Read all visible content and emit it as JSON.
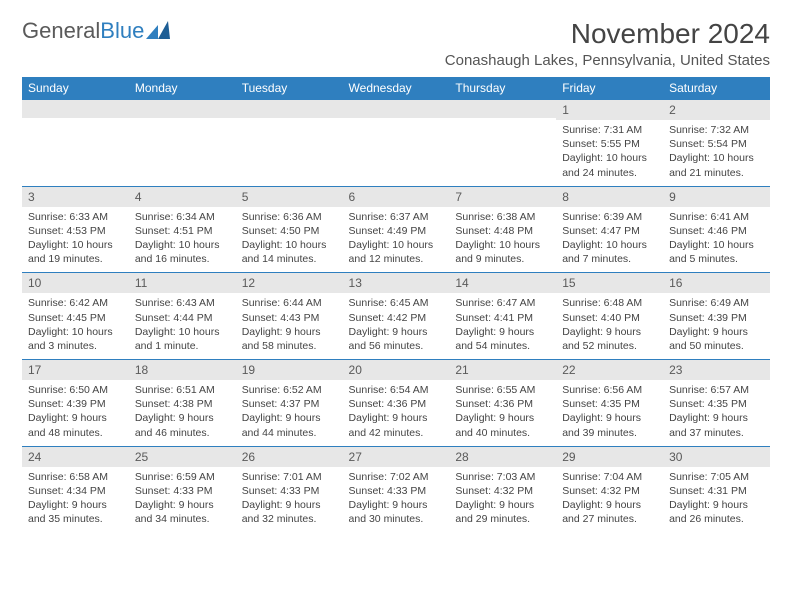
{
  "logo": {
    "text_gray": "General",
    "text_blue": "Blue"
  },
  "header": {
    "month_year": "November 2024",
    "location": "Conashaugh Lakes, Pennsylvania, United States"
  },
  "colors": {
    "header_bg": "#2f7fbf",
    "header_fg": "#ffffff",
    "daynum_bg": "#e7e7e7",
    "border": "#2f7fbf"
  },
  "days_of_week": [
    "Sunday",
    "Monday",
    "Tuesday",
    "Wednesday",
    "Thursday",
    "Friday",
    "Saturday"
  ],
  "weeks": [
    [
      {
        "n": "",
        "sr": "",
        "ss": "",
        "dl": ""
      },
      {
        "n": "",
        "sr": "",
        "ss": "",
        "dl": ""
      },
      {
        "n": "",
        "sr": "",
        "ss": "",
        "dl": ""
      },
      {
        "n": "",
        "sr": "",
        "ss": "",
        "dl": ""
      },
      {
        "n": "",
        "sr": "",
        "ss": "",
        "dl": ""
      },
      {
        "n": "1",
        "sr": "Sunrise: 7:31 AM",
        "ss": "Sunset: 5:55 PM",
        "dl": "Daylight: 10 hours and 24 minutes."
      },
      {
        "n": "2",
        "sr": "Sunrise: 7:32 AM",
        "ss": "Sunset: 5:54 PM",
        "dl": "Daylight: 10 hours and 21 minutes."
      }
    ],
    [
      {
        "n": "3",
        "sr": "Sunrise: 6:33 AM",
        "ss": "Sunset: 4:53 PM",
        "dl": "Daylight: 10 hours and 19 minutes."
      },
      {
        "n": "4",
        "sr": "Sunrise: 6:34 AM",
        "ss": "Sunset: 4:51 PM",
        "dl": "Daylight: 10 hours and 16 minutes."
      },
      {
        "n": "5",
        "sr": "Sunrise: 6:36 AM",
        "ss": "Sunset: 4:50 PM",
        "dl": "Daylight: 10 hours and 14 minutes."
      },
      {
        "n": "6",
        "sr": "Sunrise: 6:37 AM",
        "ss": "Sunset: 4:49 PM",
        "dl": "Daylight: 10 hours and 12 minutes."
      },
      {
        "n": "7",
        "sr": "Sunrise: 6:38 AM",
        "ss": "Sunset: 4:48 PM",
        "dl": "Daylight: 10 hours and 9 minutes."
      },
      {
        "n": "8",
        "sr": "Sunrise: 6:39 AM",
        "ss": "Sunset: 4:47 PM",
        "dl": "Daylight: 10 hours and 7 minutes."
      },
      {
        "n": "9",
        "sr": "Sunrise: 6:41 AM",
        "ss": "Sunset: 4:46 PM",
        "dl": "Daylight: 10 hours and 5 minutes."
      }
    ],
    [
      {
        "n": "10",
        "sr": "Sunrise: 6:42 AM",
        "ss": "Sunset: 4:45 PM",
        "dl": "Daylight: 10 hours and 3 minutes."
      },
      {
        "n": "11",
        "sr": "Sunrise: 6:43 AM",
        "ss": "Sunset: 4:44 PM",
        "dl": "Daylight: 10 hours and 1 minute."
      },
      {
        "n": "12",
        "sr": "Sunrise: 6:44 AM",
        "ss": "Sunset: 4:43 PM",
        "dl": "Daylight: 9 hours and 58 minutes."
      },
      {
        "n": "13",
        "sr": "Sunrise: 6:45 AM",
        "ss": "Sunset: 4:42 PM",
        "dl": "Daylight: 9 hours and 56 minutes."
      },
      {
        "n": "14",
        "sr": "Sunrise: 6:47 AM",
        "ss": "Sunset: 4:41 PM",
        "dl": "Daylight: 9 hours and 54 minutes."
      },
      {
        "n": "15",
        "sr": "Sunrise: 6:48 AM",
        "ss": "Sunset: 4:40 PM",
        "dl": "Daylight: 9 hours and 52 minutes."
      },
      {
        "n": "16",
        "sr": "Sunrise: 6:49 AM",
        "ss": "Sunset: 4:39 PM",
        "dl": "Daylight: 9 hours and 50 minutes."
      }
    ],
    [
      {
        "n": "17",
        "sr": "Sunrise: 6:50 AM",
        "ss": "Sunset: 4:39 PM",
        "dl": "Daylight: 9 hours and 48 minutes."
      },
      {
        "n": "18",
        "sr": "Sunrise: 6:51 AM",
        "ss": "Sunset: 4:38 PM",
        "dl": "Daylight: 9 hours and 46 minutes."
      },
      {
        "n": "19",
        "sr": "Sunrise: 6:52 AM",
        "ss": "Sunset: 4:37 PM",
        "dl": "Daylight: 9 hours and 44 minutes."
      },
      {
        "n": "20",
        "sr": "Sunrise: 6:54 AM",
        "ss": "Sunset: 4:36 PM",
        "dl": "Daylight: 9 hours and 42 minutes."
      },
      {
        "n": "21",
        "sr": "Sunrise: 6:55 AM",
        "ss": "Sunset: 4:36 PM",
        "dl": "Daylight: 9 hours and 40 minutes."
      },
      {
        "n": "22",
        "sr": "Sunrise: 6:56 AM",
        "ss": "Sunset: 4:35 PM",
        "dl": "Daylight: 9 hours and 39 minutes."
      },
      {
        "n": "23",
        "sr": "Sunrise: 6:57 AM",
        "ss": "Sunset: 4:35 PM",
        "dl": "Daylight: 9 hours and 37 minutes."
      }
    ],
    [
      {
        "n": "24",
        "sr": "Sunrise: 6:58 AM",
        "ss": "Sunset: 4:34 PM",
        "dl": "Daylight: 9 hours and 35 minutes."
      },
      {
        "n": "25",
        "sr": "Sunrise: 6:59 AM",
        "ss": "Sunset: 4:33 PM",
        "dl": "Daylight: 9 hours and 34 minutes."
      },
      {
        "n": "26",
        "sr": "Sunrise: 7:01 AM",
        "ss": "Sunset: 4:33 PM",
        "dl": "Daylight: 9 hours and 32 minutes."
      },
      {
        "n": "27",
        "sr": "Sunrise: 7:02 AM",
        "ss": "Sunset: 4:33 PM",
        "dl": "Daylight: 9 hours and 30 minutes."
      },
      {
        "n": "28",
        "sr": "Sunrise: 7:03 AM",
        "ss": "Sunset: 4:32 PM",
        "dl": "Daylight: 9 hours and 29 minutes."
      },
      {
        "n": "29",
        "sr": "Sunrise: 7:04 AM",
        "ss": "Sunset: 4:32 PM",
        "dl": "Daylight: 9 hours and 27 minutes."
      },
      {
        "n": "30",
        "sr": "Sunrise: 7:05 AM",
        "ss": "Sunset: 4:31 PM",
        "dl": "Daylight: 9 hours and 26 minutes."
      }
    ]
  ]
}
